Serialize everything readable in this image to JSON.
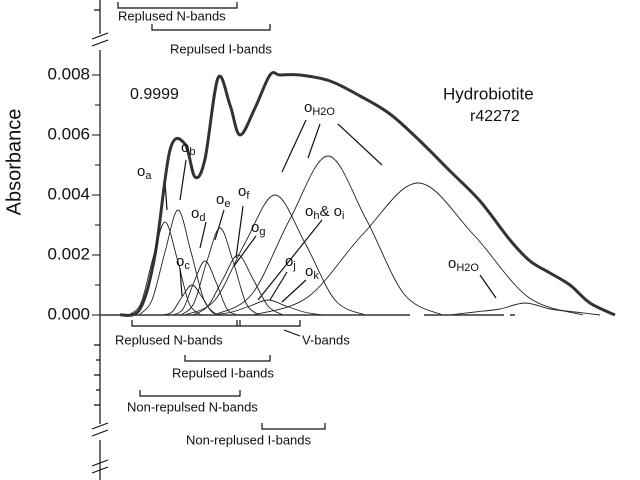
{
  "chart_data": {
    "type": "line",
    "ylabel": "Absorbance",
    "ylim": [
      0,
      0.008
    ],
    "yticks": [
      {
        "value": 0,
        "label": "0.000"
      },
      {
        "value": 0.002,
        "label": "0.002"
      },
      {
        "value": 0.004,
        "label": "0.004"
      },
      {
        "value": 0.006,
        "label": "0.006"
      },
      {
        "value": 0.008,
        "label": "0.008"
      }
    ],
    "xlim": [
      0,
      540
    ],
    "series": [
      {
        "color": "#333",
        "values": [
          0,
          0.0002,
          0.002,
          0.0055,
          0.0057,
          0.0046,
          0.0052,
          0.0079,
          0.007,
          0.006,
          0.0069,
          0.008,
          0.008,
          0.008,
          0.0078,
          0.0073,
          0.0067,
          0.0058,
          0.0048,
          0.0038,
          0.0025,
          0.0018,
          0.0014,
          0.001,
          0.0004,
          0
        ],
        "x": [
          20,
          40,
          55,
          70,
          85,
          95,
          105,
          118,
          130,
          140,
          155,
          170,
          180,
          200,
          230,
          260,
          290,
          320,
          350,
          380,
          410,
          430,
          450,
          470,
          490,
          515
        ]
      },
      {
        "color": "#222",
        "values": [
          0,
          0.0004,
          0.0019,
          0.0031,
          0.0019,
          0.0004,
          0
        ],
        "x": [
          29,
          41,
          53,
          65,
          77,
          89,
          101
        ]
      },
      {
        "color": "#222",
        "values": [
          0,
          0.0005,
          0.0021,
          0.0035,
          0.0021,
          0.0005,
          0
        ],
        "x": [
          39,
          52,
          65,
          78,
          91,
          104,
          117
        ]
      },
      {
        "color": "#222",
        "values": [
          0,
          0.0001,
          0.0006,
          0.001,
          0.0006,
          0.0001,
          0
        ],
        "x": [
          62,
          72,
          82,
          92,
          102,
          112,
          122
        ]
      },
      {
        "color": "#222",
        "values": [
          0,
          0.0002,
          0.0011,
          0.0018,
          0.0011,
          0.0002,
          0
        ],
        "x": [
          72,
          83,
          94,
          105,
          116,
          127,
          138
        ]
      },
      {
        "color": "#222",
        "values": [
          0,
          0.0004,
          0.0018,
          0.0029,
          0.0018,
          0.0004,
          0
        ],
        "x": [
          81,
          94,
          107,
          120,
          133,
          146,
          159
        ]
      },
      {
        "color": "#222",
        "values": [
          0,
          0.0003,
          0.0012,
          0.002,
          0.0012,
          0.0003,
          0
        ],
        "x": [
          93,
          108,
          123,
          138,
          153,
          168,
          183
        ]
      },
      {
        "color": "#222",
        "values": [
          0,
          0.0005,
          0.0024,
          0.004,
          0.0024,
          0.0005,
          0
        ],
        "x": [
          85,
          115,
          145,
          175,
          205,
          235,
          265
        ]
      },
      {
        "color": "#222",
        "values": [
          0,
          0.0007,
          0.0032,
          0.0053,
          0.0032,
          0.0007,
          0
        ],
        "x": [
          114,
          152,
          190,
          228,
          266,
          304,
          342
        ]
      },
      {
        "color": "#222",
        "values": [
          0,
          0.0001,
          0.0003,
          0.0005,
          0.0003,
          0.0001,
          0
        ],
        "x": [
          114,
          132,
          150,
          168,
          186,
          204,
          222
        ]
      },
      {
        "color": "#222",
        "values": [
          0,
          0.0006,
          0.0027,
          0.0044,
          0.0027,
          0.0006,
          0
        ],
        "x": [
          153,
          208,
          263,
          318,
          373,
          428,
          483
        ]
      },
      {
        "color": "#222",
        "values": [
          0,
          0.0001,
          0.0002,
          0.0004,
          0.0002,
          0.0001,
          0
        ],
        "x": [
          350,
          375,
          400,
          425,
          450,
          475,
          500
        ]
      }
    ],
    "texts": [
      "0.9999",
      "Hydrobiotite",
      "r42272"
    ],
    "annotations": [
      {
        "base": "o",
        "sub": "a"
      },
      {
        "base": "o",
        "sub": "b"
      },
      {
        "base": "o",
        "sub": "c"
      },
      {
        "base": "o",
        "sub": "d"
      },
      {
        "base": "o",
        "sub": "e"
      },
      {
        "base": "o",
        "sub": "f"
      },
      {
        "base": "o",
        "sub": "g"
      },
      {
        "base": "o",
        "sub": "h",
        "base2": "& o",
        "sub2": "i"
      },
      {
        "base": "o",
        "sub": "j"
      },
      {
        "base": "o",
        "sub": "k"
      },
      {
        "base": "o",
        "sub": "H2O"
      },
      {
        "base": "o",
        "sub": "H2O"
      }
    ],
    "bands": [
      "Replused N-bands",
      "Repulsed I-bands",
      "Replused N-bands",
      "Repulsed I-bands",
      "V-bands",
      "Non-repulsed N-bands",
      "Non-replused I-bands"
    ]
  }
}
